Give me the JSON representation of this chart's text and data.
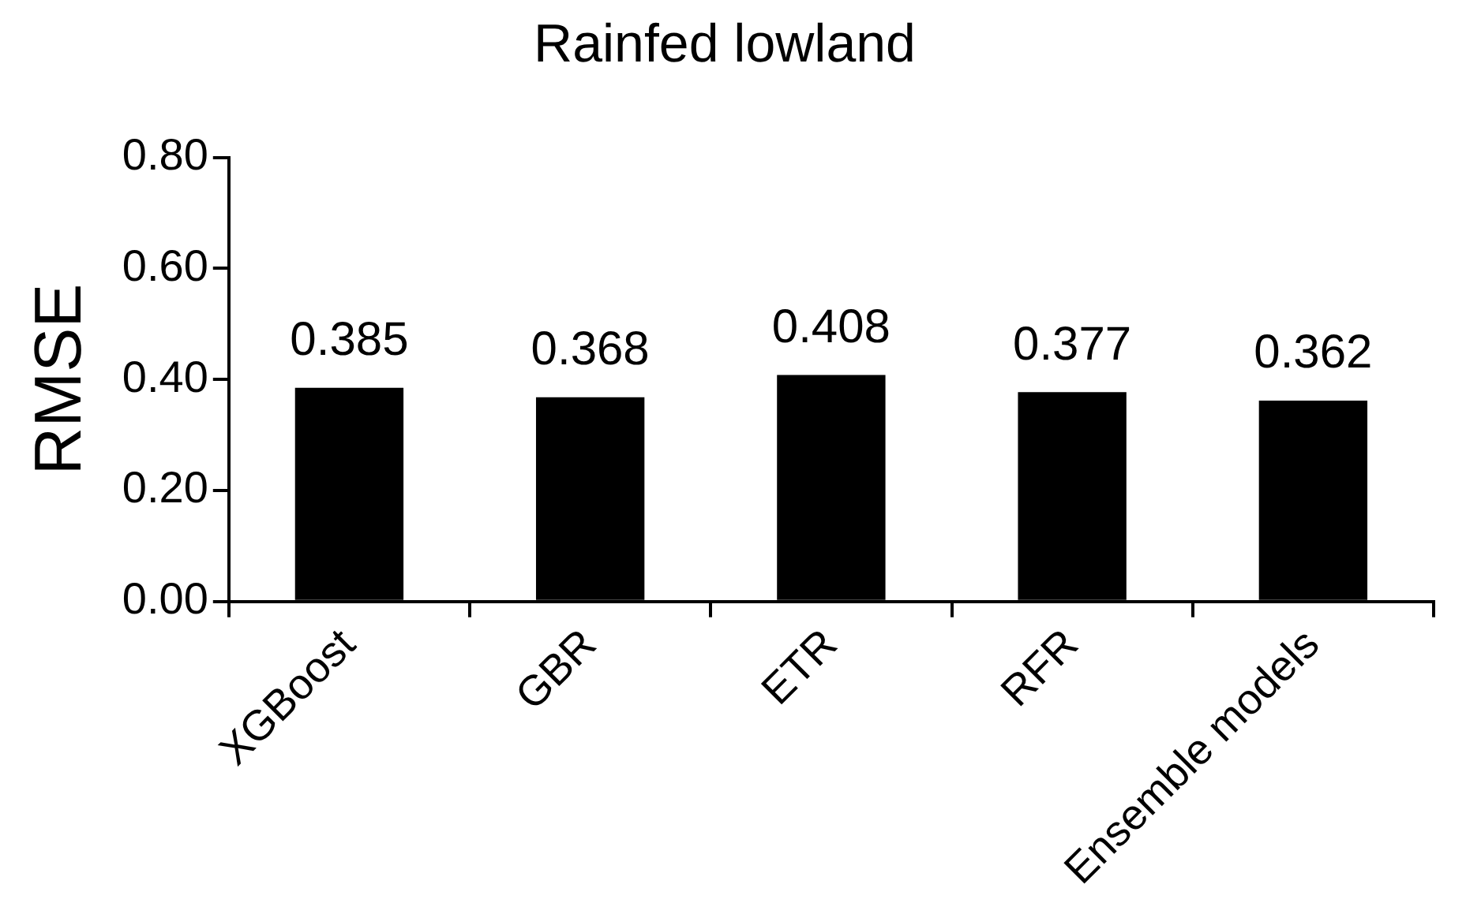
{
  "chart_data": {
    "type": "bar",
    "title": "Rainfed lowland",
    "ylabel": "RMSE",
    "categories": [
      "XGBoost",
      "GBR",
      "ETR",
      "RFR",
      "Ensemble models"
    ],
    "values": [
      0.385,
      0.368,
      0.408,
      0.377,
      0.362
    ],
    "color": "#000000",
    "ylim": [
      0,
      0.8
    ],
    "yticks": [
      {
        "value": 0,
        "label": "0.00"
      },
      {
        "value": 0.2,
        "label": "0.20"
      },
      {
        "value": 0.4,
        "label": "0.40"
      },
      {
        "value": 0.6,
        "label": "0.60"
      },
      {
        "value": 0.8,
        "label": "0.80"
      }
    ],
    "grid": false,
    "legend": false,
    "data_labels": true
  }
}
